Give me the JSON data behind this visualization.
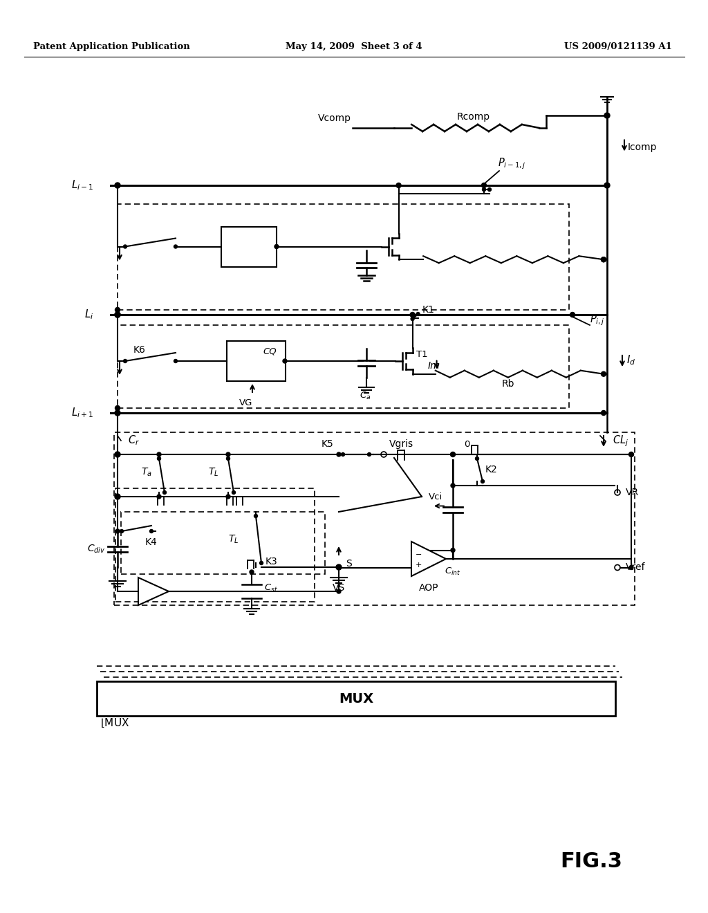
{
  "bg_color": "#ffffff",
  "header_left": "Patent Application Publication",
  "header_mid": "May 14, 2009  Sheet 3 of 4",
  "header_right": "US 2009/0121139 A1",
  "fig_label": "FIG.3",
  "mux_label": "MUX"
}
